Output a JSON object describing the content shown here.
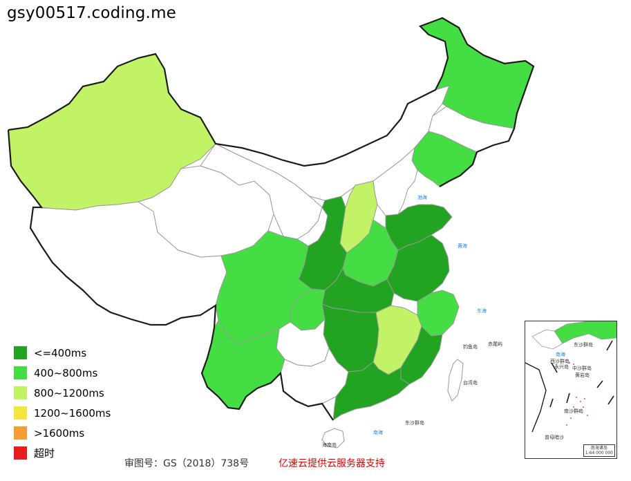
{
  "title": "gsy00517.coding.me",
  "colors": {
    "c400": "#22a322",
    "c800": "#44dd44",
    "c1200": "#c2f266",
    "c1600": "#f5e63c",
    "c1600plus": "#f59c34",
    "timeout": "#e81c1c",
    "none": "#ffffff",
    "border": "#999999",
    "coast": "#1b1b1b"
  },
  "legend": [
    {
      "label": "<=400ms",
      "color": "#22a322"
    },
    {
      "label": "400~800ms",
      "color": "#44dd44"
    },
    {
      "label": "800~1200ms",
      "color": "#c2f266"
    },
    {
      "label": "1200~1600ms",
      "color": "#f5e63c"
    },
    {
      "label": ">1600ms",
      "color": "#f59c34"
    },
    {
      "label": "超时",
      "color": "#e81c1c"
    }
  ],
  "regions": {
    "xinjiang": "800~1200ms",
    "tibet": "none",
    "qinghai": "none",
    "gansu": "none",
    "inner_mongolia": "none",
    "heilongjiang": "400~800ms",
    "jilin": "none",
    "liaoning": "400~800ms",
    "beijing_hebei": "none",
    "shanxi": "800~1200ms",
    "shaanxi": "<=400ms",
    "ningxia": "none",
    "henan": "400~800ms",
    "shandong": "<=400ms",
    "jiangsu_anhui": "<=400ms",
    "zhejiang": "400~800ms",
    "hubei": "<=400ms",
    "hunan": "<=400ms",
    "jiangxi": "800~1200ms",
    "fujian": "<=400ms",
    "guangdong": "<=400ms",
    "guangxi": "none",
    "guizhou": "none",
    "chongqing": "400~800ms",
    "sichuan": "400~800ms",
    "yunnan": "400~800ms",
    "hainan": "none",
    "taiwan": "none"
  },
  "sea_labels": [
    "渤海",
    "黄海",
    "东海",
    "南海"
  ],
  "island_labels": [
    "台湾岛",
    "海南岛",
    "东沙群岛",
    "钓鱼岛",
    "赤尾屿"
  ],
  "inset": {
    "caption_line1": "南海诸岛",
    "caption_line2": "1:64 000 000",
    "labels": [
      "东沙群岛",
      "南海",
      "西沙群岛",
      "永兴岛",
      "中沙群岛",
      "黄岩岛",
      "南沙群岛",
      "曾母暗沙"
    ]
  },
  "footer": {
    "approval": "审图号：GS（2018）738号",
    "support": "亿速云提供云服务器支持"
  }
}
